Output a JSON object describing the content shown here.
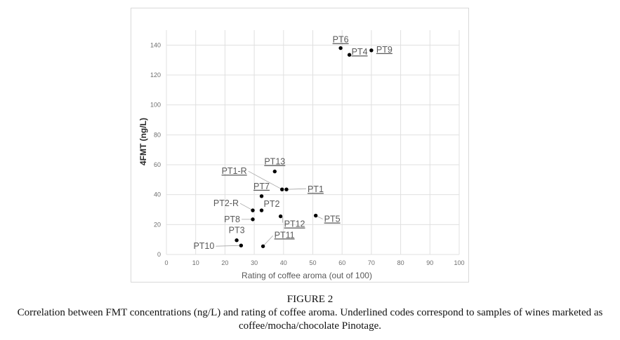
{
  "figure": {
    "title": "FIGURE 2",
    "caption": "Correlation between FMT concentrations (ng/L) and rating of coffee aroma. Underlined codes correspond to samples of wines marketed as coffee/mocha/chocolate Pinotage."
  },
  "chart_data": {
    "type": "scatter",
    "title": "",
    "xlabel": "Rating of coffee aroma (out of 100)",
    "ylabel": "4FMT (ng/L)",
    "xlim": [
      0,
      100
    ],
    "ylim": [
      0,
      150
    ],
    "xticks": [
      0,
      10,
      20,
      30,
      40,
      50,
      60,
      70,
      80,
      90,
      100
    ],
    "yticks": [
      0,
      20,
      40,
      60,
      80,
      100,
      120,
      140
    ],
    "grid": true,
    "legend": "none",
    "marker_color": "#000000",
    "points": [
      {
        "label": "PT6",
        "x": 59.5,
        "y": 138,
        "underlined": true
      },
      {
        "label": "PT4",
        "x": 62.5,
        "y": 133.5,
        "underlined": true
      },
      {
        "label": "PT9",
        "x": 70,
        "y": 136.5,
        "underlined": true
      },
      {
        "label": "PT13",
        "x": 37,
        "y": 55.5,
        "underlined": true
      },
      {
        "label": "PT1-R",
        "x": 39.5,
        "y": 43.5,
        "underlined": true
      },
      {
        "label": "PT1",
        "x": 41,
        "y": 43.5,
        "underlined": true
      },
      {
        "label": "PT7",
        "x": 32.5,
        "y": 39,
        "underlined": true
      },
      {
        "label": "PT2-R",
        "x": 29.5,
        "y": 29.5,
        "underlined": false
      },
      {
        "label": "PT2",
        "x": 32.5,
        "y": 29.5,
        "underlined": false
      },
      {
        "label": "PT8",
        "x": 29.5,
        "y": 23.5,
        "underlined": false
      },
      {
        "label": "PT12",
        "x": 39,
        "y": 25.5,
        "underlined": true
      },
      {
        "label": "PT5",
        "x": 51,
        "y": 26,
        "underlined": true
      },
      {
        "label": "PT3",
        "x": 24,
        "y": 9.5,
        "underlined": false
      },
      {
        "label": "PT10",
        "x": 25.5,
        "y": 6,
        "underlined": false
      },
      {
        "label": "PT11",
        "x": 33,
        "y": 5.5,
        "underlined": true
      }
    ]
  }
}
